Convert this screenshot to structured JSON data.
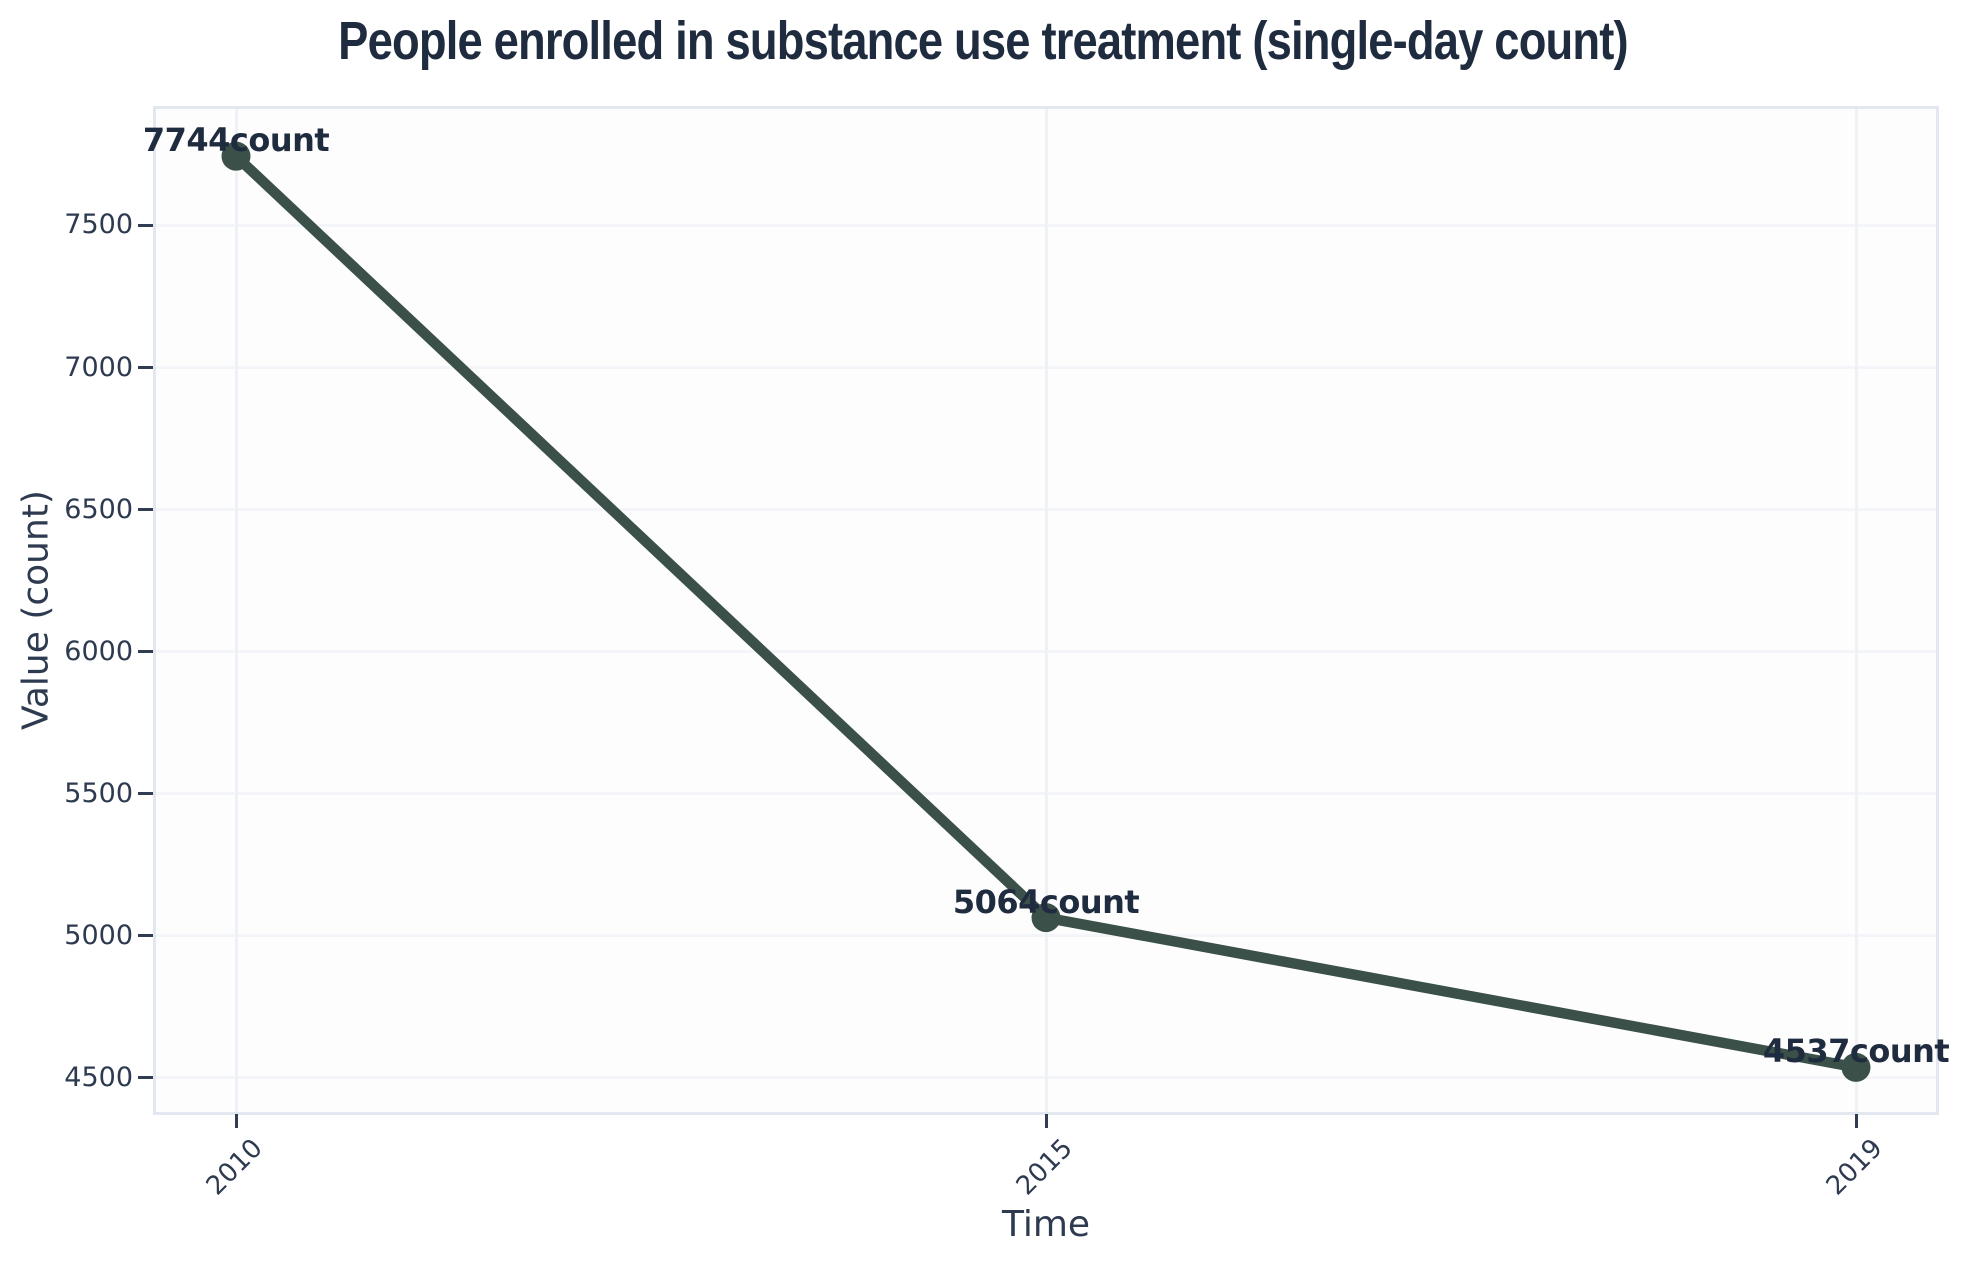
{
  "chart_data": {
    "type": "line",
    "title": "People enrolled in substance use treatment (single-day count)",
    "xlabel": "Time",
    "ylabel": "Value (count)",
    "categories": [
      "2010",
      "2015",
      "2019"
    ],
    "series": [
      {
        "name": "count",
        "values": [
          7744,
          5064,
          4537
        ]
      }
    ],
    "point_labels": [
      "7744count",
      "5064count",
      "4537count"
    ],
    "yticks": [
      7500,
      7000,
      6500,
      6000,
      5500,
      5000,
      4500
    ],
    "ylim": [
      4380,
      7910
    ],
    "x_tick_rotation_deg": 45,
    "grid": true,
    "legend_position": "none",
    "colors": {
      "line": "#3a5049",
      "marker": "#3a5049",
      "title_text": "#1f2b3e",
      "tick_text": "#2d3a50",
      "tick_mark": "#2f3c52",
      "grid_horizontal": "#f3f5f8",
      "grid_vertical": "#eef2f7",
      "plot_border": "#e2e7f0",
      "plot_background": "#fdfdfe",
      "page_background": "#ffffff"
    }
  }
}
